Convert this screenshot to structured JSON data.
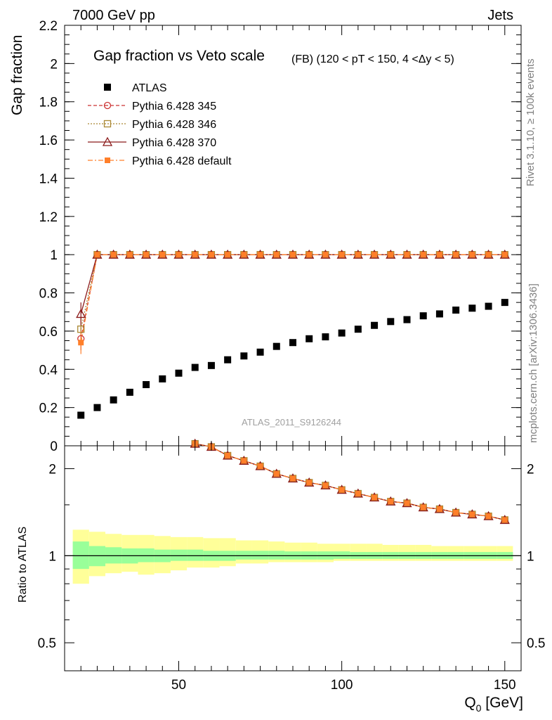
{
  "header": {
    "left": "7000 GeV pp",
    "right": "Jets"
  },
  "side_text": {
    "top": "Rivet 3.1.10, ≥ 100k events",
    "bottom": "mcplots.cern.ch [arXiv:1306.3436]"
  },
  "watermark": "ATLAS_2011_S9126244",
  "chart_data": [
    {
      "type": "scatter",
      "title": "Gap fraction vs Veto scale",
      "subtitle": "(FB) (120 < pT < 150, 4 <Δy < 5)",
      "ylabel": "Gap fraction",
      "ylim": [
        0,
        2.2
      ],
      "yticks": [
        "0",
        "0.2",
        "0.4",
        "0.6",
        "0.8",
        "1",
        "1.2",
        "1.4",
        "1.6",
        "1.8",
        "2",
        "2.2"
      ],
      "x": [
        20,
        25,
        30,
        35,
        40,
        45,
        50,
        55,
        60,
        65,
        70,
        75,
        80,
        85,
        90,
        95,
        100,
        105,
        110,
        115,
        120,
        125,
        130,
        135,
        140,
        145,
        150
      ],
      "series": [
        {
          "name": "ATLAS",
          "color": "#000000",
          "marker": "square-filled",
          "values": [
            0.16,
            0.2,
            0.24,
            0.28,
            0.32,
            0.35,
            0.38,
            0.41,
            0.42,
            0.45,
            0.47,
            0.49,
            0.52,
            0.54,
            0.56,
            0.57,
            0.59,
            0.61,
            0.63,
            0.65,
            0.66,
            0.68,
            0.69,
            0.71,
            0.72,
            0.73,
            0.75
          ]
        },
        {
          "name": "Pythia 6.428 345",
          "color": "#cc3333",
          "marker": "circle-open",
          "dash": "5,3",
          "values": [
            0.56,
            1,
            1,
            1,
            1,
            1,
            1,
            1,
            1,
            1,
            1,
            1,
            1,
            1,
            1,
            1,
            1,
            1,
            1,
            1,
            1,
            1,
            1,
            1,
            1,
            1,
            1
          ]
        },
        {
          "name": "Pythia 6.428 346",
          "color": "#aa8833",
          "marker": "square-open",
          "dash": "2,2",
          "values": [
            0.61,
            1,
            1,
            1,
            1,
            1,
            1,
            1,
            1,
            1,
            1,
            1,
            1,
            1,
            1,
            1,
            1,
            1,
            1,
            1,
            1,
            1,
            1,
            1,
            1,
            1,
            1
          ]
        },
        {
          "name": "Pythia 6.428 370",
          "color": "#8b1a1a",
          "marker": "triangle-open",
          "dash": "",
          "values": [
            0.69,
            1,
            1,
            1,
            1,
            1,
            1,
            1,
            1,
            1,
            1,
            1,
            1,
            1,
            1,
            1,
            1,
            1,
            1,
            1,
            1,
            1,
            1,
            1,
            1,
            1,
            1
          ]
        },
        {
          "name": "Pythia 6.428 default",
          "color": "#ff7f2a",
          "marker": "square-filled-small",
          "dash": "7,3,2,3",
          "values": [
            0.54,
            1,
            1,
            1,
            1,
            1,
            1,
            1,
            1,
            1,
            1,
            1,
            1,
            1,
            1,
            1,
            1,
            1,
            1,
            1,
            1,
            1,
            1,
            1,
            1,
            1,
            1
          ]
        }
      ]
    },
    {
      "type": "scatter",
      "ylabel": "Ratio to ATLAS",
      "xlabel": "Q0 [GeV]",
      "xlabel_main": "Q",
      "xlabel_sub": "0",
      "xlabel_unit": " [GeV]",
      "xlim": [
        15,
        155
      ],
      "xticks": [
        "50",
        "100",
        "150"
      ],
      "ylim": [
        0.4,
        2.4
      ],
      "yscale": "log",
      "yticks": [
        "0.5",
        "1",
        "2"
      ],
      "x": [
        55,
        60,
        65,
        70,
        75,
        80,
        85,
        90,
        95,
        100,
        105,
        110,
        115,
        120,
        125,
        130,
        135,
        140,
        145,
        150
      ],
      "ratio_values": [
        2.44,
        2.38,
        2.22,
        2.13,
        2.04,
        1.92,
        1.85,
        1.79,
        1.75,
        1.69,
        1.64,
        1.59,
        1.54,
        1.52,
        1.47,
        1.45,
        1.41,
        1.39,
        1.37,
        1.33
      ],
      "ratio_color": "#ff7f2a",
      "uncertainty_bands": {
        "x_edges": [
          17.5,
          22.5,
          27.5,
          32.5,
          37.5,
          42.5,
          47.5,
          52.5,
          57.5,
          62.5,
          67.5,
          72.5,
          77.5,
          82.5,
          87.5,
          92.5,
          97.5,
          102.5,
          107.5,
          112.5,
          117.5,
          122.5,
          127.5,
          132.5,
          137.5,
          142.5,
          147.5,
          152.5
        ],
        "stat_low": [
          0.9,
          0.92,
          0.94,
          0.94,
          0.95,
          0.95,
          0.96,
          0.96,
          0.96,
          0.96,
          0.97,
          0.97,
          0.97,
          0.97,
          0.97,
          0.97,
          0.975,
          0.975,
          0.975,
          0.975,
          0.975,
          0.975,
          0.975,
          0.975,
          0.975,
          0.975,
          0.975
        ],
        "stat_high": [
          1.12,
          1.08,
          1.07,
          1.06,
          1.06,
          1.05,
          1.05,
          1.05,
          1.04,
          1.04,
          1.04,
          1.04,
          1.04,
          1.035,
          1.035,
          1.035,
          1.035,
          1.03,
          1.03,
          1.03,
          1.03,
          1.03,
          1.03,
          1.03,
          1.03,
          1.03,
          1.03
        ],
        "total_low": [
          0.8,
          0.85,
          0.87,
          0.88,
          0.86,
          0.87,
          0.89,
          0.91,
          0.91,
          0.92,
          0.94,
          0.94,
          0.95,
          0.95,
          0.95,
          0.95,
          0.96,
          0.96,
          0.96,
          0.96,
          0.96,
          0.96,
          0.96,
          0.96,
          0.96,
          0.96,
          0.96
        ],
        "total_high": [
          1.23,
          1.21,
          1.19,
          1.18,
          1.18,
          1.17,
          1.16,
          1.16,
          1.15,
          1.15,
          1.13,
          1.13,
          1.12,
          1.11,
          1.11,
          1.1,
          1.1,
          1.1,
          1.1,
          1.09,
          1.09,
          1.09,
          1.08,
          1.08,
          1.08,
          1.08,
          1.08
        ],
        "stat_color": "#99ff99",
        "total_color": "#ffff99"
      }
    }
  ]
}
